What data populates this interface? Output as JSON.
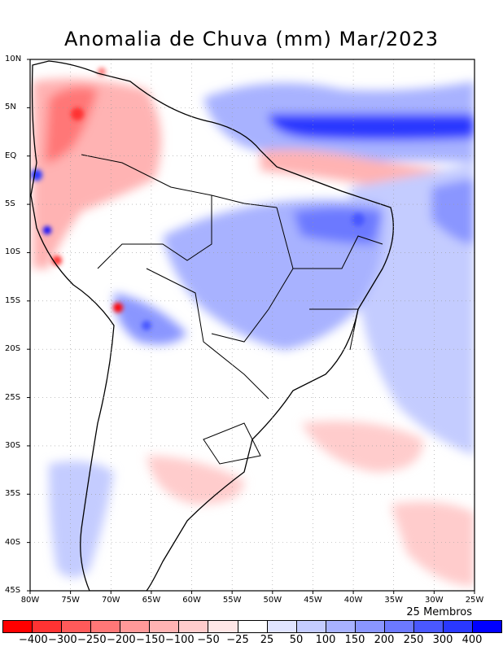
{
  "title": "Anomalia de Chuva (mm) Mar/2023",
  "members_label": "25 Membros",
  "y_ticks": [
    "10N",
    "5N",
    "EQ",
    "5S",
    "10S",
    "15S",
    "20S",
    "25S",
    "30S",
    "35S",
    "40S",
    "45S"
  ],
  "x_ticks": [
    "80W",
    "75W",
    "70W",
    "65W",
    "60W",
    "55W",
    "50W",
    "45W",
    "40W",
    "35W",
    "30W",
    "25W"
  ],
  "legend": {
    "labels": [
      "-400",
      "-300",
      "-250",
      "-200",
      "-150",
      "-100",
      "-50",
      "-25",
      "25",
      "50",
      "100",
      "150",
      "200",
      "250",
      "300",
      "400"
    ],
    "colors": [
      "#ff0000",
      "#ff3333",
      "#ff5a5a",
      "#ff7777",
      "#ff9999",
      "#ffb3b3",
      "#ffcccc",
      "#ffe6e6",
      "#ffffff",
      "#e0e4ff",
      "#c4ccff",
      "#a8b2ff",
      "#8a96ff",
      "#6c79ff",
      "#4a58ff",
      "#2a38ff",
      "#0000ff"
    ]
  }
}
